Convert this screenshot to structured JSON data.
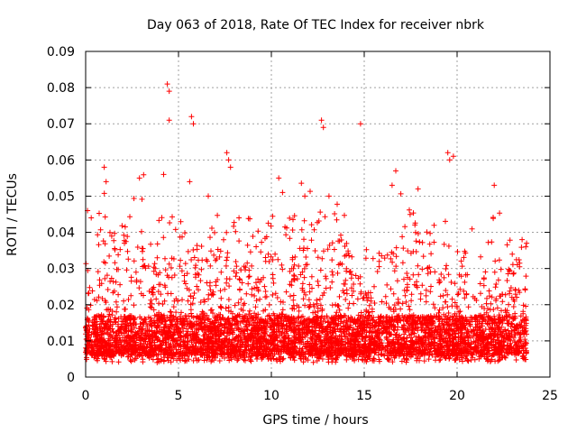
{
  "chart_data": {
    "type": "scatter",
    "title": "Day 063 of 2018, Rate Of TEC Index for receiver nbrk",
    "xlabel": "GPS time / hours",
    "ylabel": "ROTI / TECUs",
    "xlim": [
      0,
      25
    ],
    "ylim": [
      0,
      0.09
    ],
    "xticks": [
      0,
      5,
      10,
      15,
      20,
      25
    ],
    "xtick_labels": [
      "0",
      "5",
      "10",
      "15",
      "20",
      "25"
    ],
    "yticks": [
      0,
      0.01,
      0.02,
      0.03,
      0.04,
      0.05,
      0.06,
      0.07,
      0.08,
      0.09
    ],
    "ytick_labels": [
      "0",
      "0.01",
      "0.02",
      "0.03",
      "0.04",
      "0.05",
      "0.06",
      "0.07",
      "0.08",
      "0.09"
    ],
    "grid": true,
    "marker": "+",
    "color": "#ff0000",
    "series": [
      {
        "name": "ROTI",
        "notable_points": [
          [
            0.1,
            0.046
          ],
          [
            0.3,
            0.044
          ],
          [
            1.0,
            0.058
          ],
          [
            1.1,
            0.054
          ],
          [
            2.9,
            0.055
          ],
          [
            4.4,
            0.081
          ],
          [
            4.5,
            0.079
          ],
          [
            4.5,
            0.071
          ],
          [
            4.2,
            0.056
          ],
          [
            5.7,
            0.072
          ],
          [
            5.8,
            0.07
          ],
          [
            5.6,
            0.054
          ],
          [
            7.6,
            0.062
          ],
          [
            7.7,
            0.06
          ],
          [
            7.8,
            0.058
          ],
          [
            6.6,
            0.05
          ],
          [
            10.4,
            0.055
          ],
          [
            10.6,
            0.051
          ],
          [
            11.8,
            0.05
          ],
          [
            12.7,
            0.071
          ],
          [
            12.8,
            0.069
          ],
          [
            13.1,
            0.05
          ],
          [
            14.8,
            0.07
          ],
          [
            16.7,
            0.057
          ],
          [
            16.5,
            0.053
          ],
          [
            17.9,
            0.052
          ],
          [
            19.5,
            0.062
          ],
          [
            19.6,
            0.06
          ],
          [
            19.8,
            0.061
          ],
          [
            22.0,
            0.053
          ],
          [
            23.5,
            0.038
          ],
          [
            23.7,
            0.036
          ]
        ]
      }
    ],
    "generator": {
      "seed": 63,
      "n_points": 5200,
      "baseline": 0.006,
      "spread": 0.011,
      "envelope": [
        [
          0,
          0.03
        ],
        [
          1,
          0.045
        ],
        [
          2,
          0.038
        ],
        [
          3,
          0.046
        ],
        [
          4,
          0.04
        ],
        [
          5,
          0.048
        ],
        [
          6,
          0.04
        ],
        [
          7,
          0.04
        ],
        [
          8,
          0.042
        ],
        [
          9,
          0.038
        ],
        [
          10,
          0.045
        ],
        [
          11,
          0.042
        ],
        [
          12,
          0.044
        ],
        [
          13,
          0.042
        ],
        [
          14,
          0.04
        ],
        [
          15,
          0.036
        ],
        [
          16,
          0.04
        ],
        [
          17,
          0.044
        ],
        [
          18,
          0.046
        ],
        [
          19,
          0.036
        ],
        [
          20,
          0.036
        ],
        [
          21,
          0.035
        ],
        [
          22,
          0.04
        ],
        [
          23,
          0.036
        ],
        [
          23.75,
          0.035
        ]
      ],
      "x_range": [
        0,
        23.75
      ]
    }
  }
}
